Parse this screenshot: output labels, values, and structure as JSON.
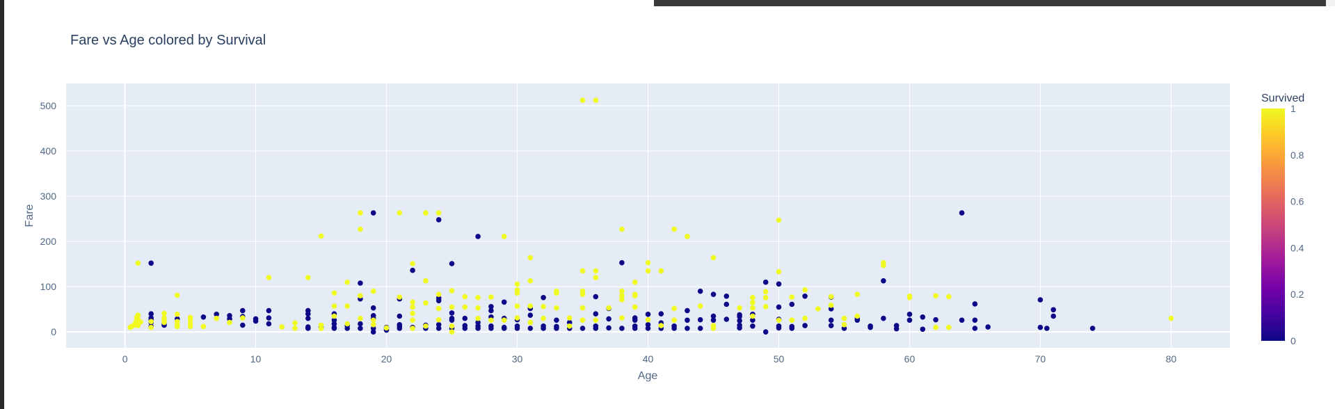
{
  "chart_data": {
    "type": "scatter",
    "title": "Fare vs Age colored by Survival",
    "xlabel": "Age",
    "ylabel": "Fare",
    "xlim": [
      -4.5,
      84.5
    ],
    "ylim": [
      -35,
      549
    ],
    "x_ticks": [
      0,
      10,
      20,
      30,
      40,
      50,
      60,
      70,
      80
    ],
    "y_ticks": [
      0,
      100,
      200,
      300,
      400,
      500
    ],
    "grid": true,
    "colorbar": {
      "title": "Survived",
      "ticks": [
        "0",
        "0.2",
        "0.4",
        "0.6",
        "0.8",
        "1"
      ],
      "colorscale": [
        "#0d0887",
        "#46039f",
        "#7201a8",
        "#9c179e",
        "#bd3786",
        "#d8576b",
        "#ed7953",
        "#fb9f3a",
        "#fdca26",
        "#f0f921"
      ]
    },
    "colors": {
      "survived": "#f0f921",
      "not_survived": "#0d0887",
      "plot_bg": "#e5ecf6"
    },
    "points": [
      [
        0.4,
        10,
        1
      ],
      [
        0.5,
        12,
        1
      ],
      [
        0.7,
        15,
        1
      ],
      [
        0.8,
        20,
        1
      ],
      [
        0.9,
        25,
        1
      ],
      [
        0.9,
        32,
        1
      ],
      [
        1,
        152,
        1
      ],
      [
        1,
        14,
        1
      ],
      [
        1,
        18,
        1
      ],
      [
        1,
        28,
        1
      ],
      [
        1,
        37,
        1
      ],
      [
        1.2,
        22,
        1
      ],
      [
        2,
        152,
        0
      ],
      [
        2,
        40,
        0
      ],
      [
        2,
        31,
        0
      ],
      [
        2,
        27,
        0
      ],
      [
        2,
        21,
        0
      ],
      [
        2,
        12,
        0
      ],
      [
        2,
        23,
        1
      ],
      [
        2,
        10,
        1
      ],
      [
        3,
        41,
        1
      ],
      [
        3,
        31,
        1
      ],
      [
        3,
        27,
        1
      ],
      [
        3,
        21,
        1
      ],
      [
        3,
        15,
        0
      ],
      [
        3,
        19,
        0
      ],
      [
        4,
        81,
        1
      ],
      [
        4,
        39,
        1
      ],
      [
        4,
        29,
        0
      ],
      [
        4,
        23,
        1
      ],
      [
        4,
        16,
        1
      ],
      [
        4,
        12,
        1
      ],
      [
        5,
        32,
        1
      ],
      [
        5,
        27,
        1
      ],
      [
        5,
        19,
        1
      ],
      [
        5,
        12,
        1
      ],
      [
        6,
        33,
        0
      ],
      [
        6,
        12,
        1
      ],
      [
        7,
        39,
        0
      ],
      [
        7,
        30,
        1
      ],
      [
        8,
        36,
        0
      ],
      [
        8,
        29,
        0
      ],
      [
        8,
        21,
        1
      ],
      [
        9,
        47,
        0
      ],
      [
        9,
        34,
        0
      ],
      [
        9,
        31,
        1
      ],
      [
        9,
        15,
        0
      ],
      [
        10,
        29,
        0
      ],
      [
        10,
        24,
        0
      ],
      [
        11,
        120,
        1
      ],
      [
        11,
        47,
        0
      ],
      [
        11,
        31,
        0
      ],
      [
        11,
        18,
        0
      ],
      [
        12,
        11,
        1
      ],
      [
        13,
        20,
        1
      ],
      [
        13,
        8,
        1
      ],
      [
        14,
        120,
        1
      ],
      [
        14,
        47,
        0
      ],
      [
        14,
        40,
        0
      ],
      [
        14,
        30,
        0
      ],
      [
        14,
        11,
        0
      ],
      [
        14,
        8,
        0
      ],
      [
        15,
        212,
        1
      ],
      [
        15,
        15,
        1
      ],
      [
        15,
        8,
        1
      ],
      [
        15,
        10,
        0
      ],
      [
        16,
        86,
        1
      ],
      [
        16,
        57,
        1
      ],
      [
        16,
        40,
        0
      ],
      [
        16,
        35,
        1
      ],
      [
        16,
        26,
        0
      ],
      [
        16,
        18,
        0
      ],
      [
        16,
        10,
        0
      ],
      [
        16,
        8,
        0
      ],
      [
        17,
        110,
        1
      ],
      [
        17,
        57,
        1
      ],
      [
        17,
        18,
        1
      ],
      [
        17,
        14,
        0
      ],
      [
        17,
        8,
        0
      ],
      [
        18,
        263,
        1
      ],
      [
        18,
        227,
        1
      ],
      [
        18,
        108,
        0
      ],
      [
        18,
        80,
        1
      ],
      [
        18,
        73,
        0
      ],
      [
        18,
        30,
        1
      ],
      [
        18,
        18,
        0
      ],
      [
        18,
        8,
        0
      ],
      [
        19,
        263,
        0
      ],
      [
        19,
        90,
        1
      ],
      [
        19,
        53,
        0
      ],
      [
        19,
        36,
        0
      ],
      [
        19,
        30,
        0
      ],
      [
        19,
        26,
        1
      ],
      [
        19,
        16,
        1
      ],
      [
        19,
        8,
        0
      ],
      [
        19,
        0,
        0
      ],
      [
        20,
        10,
        0
      ],
      [
        20,
        9,
        1
      ],
      [
        20,
        8,
        0
      ],
      [
        20,
        4,
        0
      ],
      [
        21,
        263,
        1
      ],
      [
        21,
        77,
        1
      ],
      [
        21,
        73,
        0
      ],
      [
        21,
        35,
        0
      ],
      [
        21,
        16,
        0
      ],
      [
        21,
        12,
        0
      ],
      [
        21,
        8,
        0
      ],
      [
        22,
        151,
        1
      ],
      [
        22,
        136,
        0
      ],
      [
        22,
        66,
        1
      ],
      [
        22,
        55,
        1
      ],
      [
        22,
        41,
        1
      ],
      [
        22,
        26,
        1
      ],
      [
        22,
        10,
        0
      ],
      [
        22,
        8,
        1
      ],
      [
        23,
        263,
        1
      ],
      [
        23,
        113,
        1
      ],
      [
        23,
        64,
        1
      ],
      [
        23,
        15,
        0
      ],
      [
        23,
        13,
        1
      ],
      [
        23,
        8,
        0
      ],
      [
        24,
        263,
        1
      ],
      [
        24,
        248,
        0
      ],
      [
        24,
        83,
        1
      ],
      [
        24,
        75,
        0
      ],
      [
        24,
        69,
        0
      ],
      [
        24,
        52,
        1
      ],
      [
        24,
        27,
        1
      ],
      [
        24,
        16,
        0
      ],
      [
        24,
        8,
        0
      ],
      [
        25,
        151,
        0
      ],
      [
        25,
        91,
        1
      ],
      [
        25,
        55,
        1
      ],
      [
        25,
        42,
        0
      ],
      [
        25,
        30,
        0
      ],
      [
        25,
        26,
        0
      ],
      [
        25,
        13,
        1
      ],
      [
        25,
        8,
        0
      ],
      [
        25,
        0,
        1
      ],
      [
        26,
        78,
        1
      ],
      [
        26,
        55,
        1
      ],
      [
        26,
        30,
        0
      ],
      [
        26,
        14,
        0
      ],
      [
        26,
        8,
        0
      ],
      [
        27,
        211,
        0
      ],
      [
        27,
        76,
        1
      ],
      [
        27,
        53,
        1
      ],
      [
        27,
        30,
        1
      ],
      [
        27,
        21,
        0
      ],
      [
        27,
        13,
        0
      ],
      [
        27,
        8,
        0
      ],
      [
        28,
        77,
        1
      ],
      [
        28,
        56,
        0
      ],
      [
        28,
        47,
        0
      ],
      [
        28,
        33,
        0
      ],
      [
        28,
        26,
        1
      ],
      [
        28,
        13,
        0
      ],
      [
        28,
        8,
        0
      ],
      [
        29,
        211,
        1
      ],
      [
        29,
        66,
        0
      ],
      [
        29,
        30,
        0
      ],
      [
        29,
        26,
        1
      ],
      [
        29,
        10,
        0
      ],
      [
        29,
        8,
        0
      ],
      [
        30,
        106,
        1
      ],
      [
        30,
        93,
        1
      ],
      [
        30,
        86,
        1
      ],
      [
        30,
        57,
        1
      ],
      [
        30,
        31,
        1
      ],
      [
        30,
        27,
        0
      ],
      [
        30,
        13,
        0
      ],
      [
        30,
        8,
        0
      ],
      [
        31,
        164,
        1
      ],
      [
        31,
        113,
        1
      ],
      [
        31,
        57,
        1
      ],
      [
        31,
        52,
        0
      ],
      [
        31,
        37,
        0
      ],
      [
        31,
        21,
        1
      ],
      [
        31,
        8,
        0
      ],
      [
        32,
        76,
        0
      ],
      [
        32,
        56,
        1
      ],
      [
        32,
        30,
        1
      ],
      [
        32,
        13,
        0
      ],
      [
        32,
        8,
        0
      ],
      [
        33,
        90,
        1
      ],
      [
        33,
        86,
        1
      ],
      [
        33,
        53,
        1
      ],
      [
        33,
        26,
        0
      ],
      [
        33,
        12,
        0
      ],
      [
        33,
        8,
        0
      ],
      [
        34,
        31,
        1
      ],
      [
        34,
        21,
        0
      ],
      [
        34,
        13,
        1
      ],
      [
        34,
        8,
        0
      ],
      [
        35,
        512,
        1
      ],
      [
        35,
        135,
        1
      ],
      [
        35,
        90,
        1
      ],
      [
        35,
        83,
        1
      ],
      [
        35,
        53,
        1
      ],
      [
        35,
        26,
        1
      ],
      [
        35,
        8,
        0
      ],
      [
        36,
        512,
        1
      ],
      [
        36,
        135,
        1
      ],
      [
        36,
        120,
        1
      ],
      [
        36,
        78,
        0
      ],
      [
        36,
        40,
        0
      ],
      [
        36,
        26,
        1
      ],
      [
        36,
        13,
        0
      ],
      [
        36,
        8,
        0
      ],
      [
        37,
        53,
        1
      ],
      [
        37,
        52,
        0
      ],
      [
        37,
        29,
        0
      ],
      [
        37,
        9,
        0
      ],
      [
        38,
        227,
        1
      ],
      [
        38,
        153,
        0
      ],
      [
        38,
        90,
        1
      ],
      [
        38,
        80,
        1
      ],
      [
        38,
        71,
        1
      ],
      [
        38,
        31,
        1
      ],
      [
        38,
        8,
        0
      ],
      [
        39,
        110,
        1
      ],
      [
        39,
        83,
        1
      ],
      [
        39,
        80,
        1
      ],
      [
        39,
        55,
        1
      ],
      [
        39,
        31,
        0
      ],
      [
        39,
        26,
        0
      ],
      [
        39,
        13,
        0
      ],
      [
        39,
        8,
        0
      ],
      [
        40,
        153,
        1
      ],
      [
        40,
        135,
        1
      ],
      [
        40,
        39,
        0
      ],
      [
        40,
        27,
        1
      ],
      [
        40,
        16,
        0
      ],
      [
        40,
        8,
        0
      ],
      [
        41,
        135,
        1
      ],
      [
        41,
        40,
        0
      ],
      [
        41,
        20,
        0
      ],
      [
        41,
        14,
        1
      ],
      [
        41,
        8,
        0
      ],
      [
        42,
        227,
        1
      ],
      [
        42,
        52,
        1
      ],
      [
        42,
        26,
        1
      ],
      [
        42,
        13,
        0
      ],
      [
        42,
        8,
        0
      ],
      [
        43,
        211,
        1
      ],
      [
        43,
        47,
        0
      ],
      [
        43,
        26,
        0
      ],
      [
        43,
        8,
        0
      ],
      [
        44,
        90,
        0
      ],
      [
        44,
        57,
        1
      ],
      [
        44,
        27,
        0
      ],
      [
        44,
        8,
        0
      ],
      [
        45,
        164,
        1
      ],
      [
        45,
        83,
        0
      ],
      [
        45,
        35,
        0
      ],
      [
        45,
        26,
        0
      ],
      [
        45,
        14,
        1
      ],
      [
        45,
        8,
        1
      ],
      [
        46,
        79,
        0
      ],
      [
        46,
        61,
        0
      ],
      [
        46,
        28,
        0
      ],
      [
        47,
        53,
        1
      ],
      [
        47,
        38,
        0
      ],
      [
        47,
        34,
        0
      ],
      [
        47,
        25,
        0
      ],
      [
        47,
        15,
        0
      ],
      [
        47,
        9,
        0
      ],
      [
        48,
        76,
        1
      ],
      [
        48,
        65,
        1
      ],
      [
        48,
        53,
        1
      ],
      [
        48,
        39,
        0
      ],
      [
        48,
        35,
        1
      ],
      [
        48,
        26,
        0
      ],
      [
        48,
        13,
        0
      ],
      [
        49,
        110,
        0
      ],
      [
        49,
        89,
        1
      ],
      [
        49,
        76,
        1
      ],
      [
        49,
        56,
        1
      ],
      [
        49,
        0,
        0
      ],
      [
        50,
        247,
        1
      ],
      [
        50,
        133,
        1
      ],
      [
        50,
        106,
        0
      ],
      [
        50,
        55,
        0
      ],
      [
        50,
        28,
        0
      ],
      [
        50,
        26,
        1
      ],
      [
        50,
        13,
        0
      ],
      [
        50,
        9,
        0
      ],
      [
        51,
        77,
        1
      ],
      [
        51,
        61,
        0
      ],
      [
        51,
        26,
        1
      ],
      [
        51,
        12,
        0
      ],
      [
        51,
        8,
        0
      ],
      [
        52,
        93,
        1
      ],
      [
        52,
        79,
        0
      ],
      [
        52,
        30,
        1
      ],
      [
        52,
        14,
        0
      ],
      [
        53,
        51,
        1
      ],
      [
        54,
        78,
        1
      ],
      [
        54,
        77,
        0
      ],
      [
        54,
        59,
        1
      ],
      [
        54,
        51,
        0
      ],
      [
        54,
        26,
        0
      ],
      [
        54,
        14,
        0
      ],
      [
        55,
        30,
        1
      ],
      [
        55,
        16,
        1
      ],
      [
        55,
        8,
        0
      ],
      [
        56,
        83,
        1
      ],
      [
        56,
        35,
        1
      ],
      [
        56,
        30,
        0
      ],
      [
        56,
        26,
        0
      ],
      [
        57,
        13,
        0
      ],
      [
        57,
        10,
        0
      ],
      [
        58,
        153,
        1
      ],
      [
        58,
        147,
        1
      ],
      [
        58,
        113,
        0
      ],
      [
        58,
        30,
        0
      ],
      [
        59,
        14,
        0
      ],
      [
        59,
        7,
        0
      ],
      [
        60,
        79,
        1
      ],
      [
        60,
        76,
        1
      ],
      [
        60,
        39,
        0
      ],
      [
        60,
        26,
        0
      ],
      [
        61,
        33,
        0
      ],
      [
        61,
        6,
        0
      ],
      [
        62,
        80,
        1
      ],
      [
        62,
        27,
        0
      ],
      [
        62,
        10,
        1
      ],
      [
        63,
        78,
        1
      ],
      [
        63,
        10,
        1
      ],
      [
        64,
        263,
        0
      ],
      [
        64,
        26,
        0
      ],
      [
        65,
        62,
        0
      ],
      [
        65,
        26,
        0
      ],
      [
        65,
        8,
        0
      ],
      [
        66,
        11,
        0
      ],
      [
        70,
        71,
        0
      ],
      [
        70,
        10,
        0
      ],
      [
        70.5,
        8,
        0
      ],
      [
        71,
        49,
        0
      ],
      [
        71,
        35,
        0
      ],
      [
        74,
        8,
        0
      ],
      [
        80,
        30,
        1
      ]
    ]
  }
}
